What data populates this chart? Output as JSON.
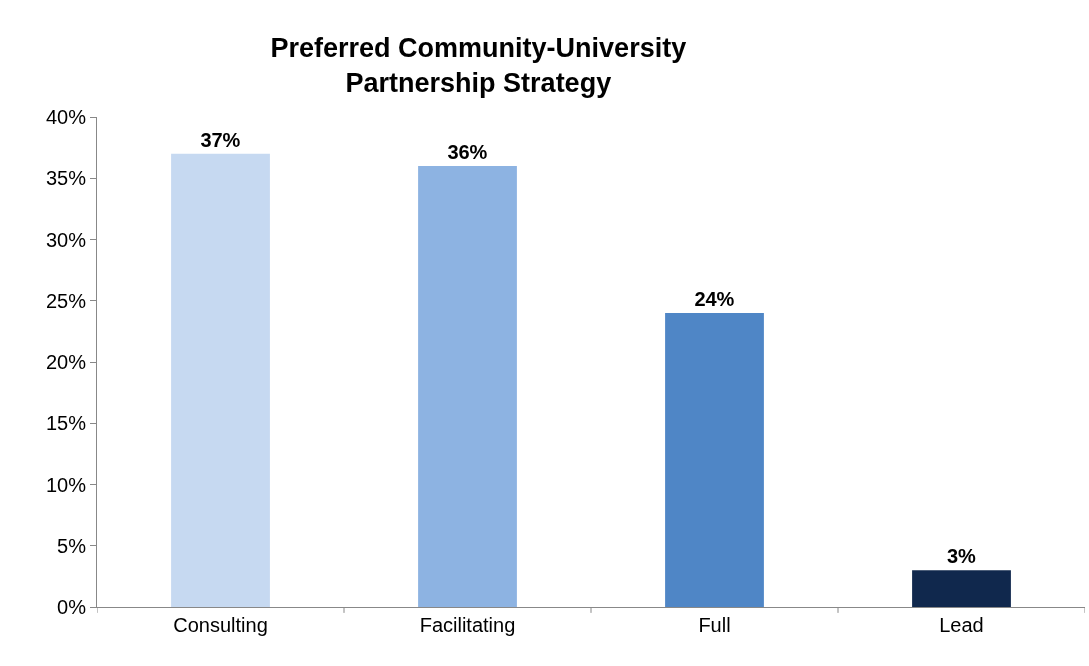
{
  "chart_data": {
    "type": "bar",
    "title": "Preferred Community-University\nPartnership Strategy",
    "categories": [
      "Consulting",
      "Facilitating",
      "Full",
      "Lead"
    ],
    "values": [
      37,
      36,
      24,
      3
    ],
    "colors": [
      "#c6d9f1",
      "#8db3e2",
      "#4f86c6",
      "#10284d"
    ],
    "value_labels": [
      "37%",
      "36%",
      "24%",
      "3%"
    ],
    "ylim": [
      0,
      40
    ],
    "yticks": [
      {
        "value": 0,
        "label": "0%"
      },
      {
        "value": 5,
        "label": "5%"
      },
      {
        "value": 10,
        "label": "10%"
      },
      {
        "value": 15,
        "label": "15%"
      },
      {
        "value": 20,
        "label": "20%"
      },
      {
        "value": 25,
        "label": "25%"
      },
      {
        "value": 30,
        "label": "30%"
      },
      {
        "value": 35,
        "label": "35%"
      },
      {
        "value": 40,
        "label": "40%"
      }
    ],
    "grid": false
  }
}
